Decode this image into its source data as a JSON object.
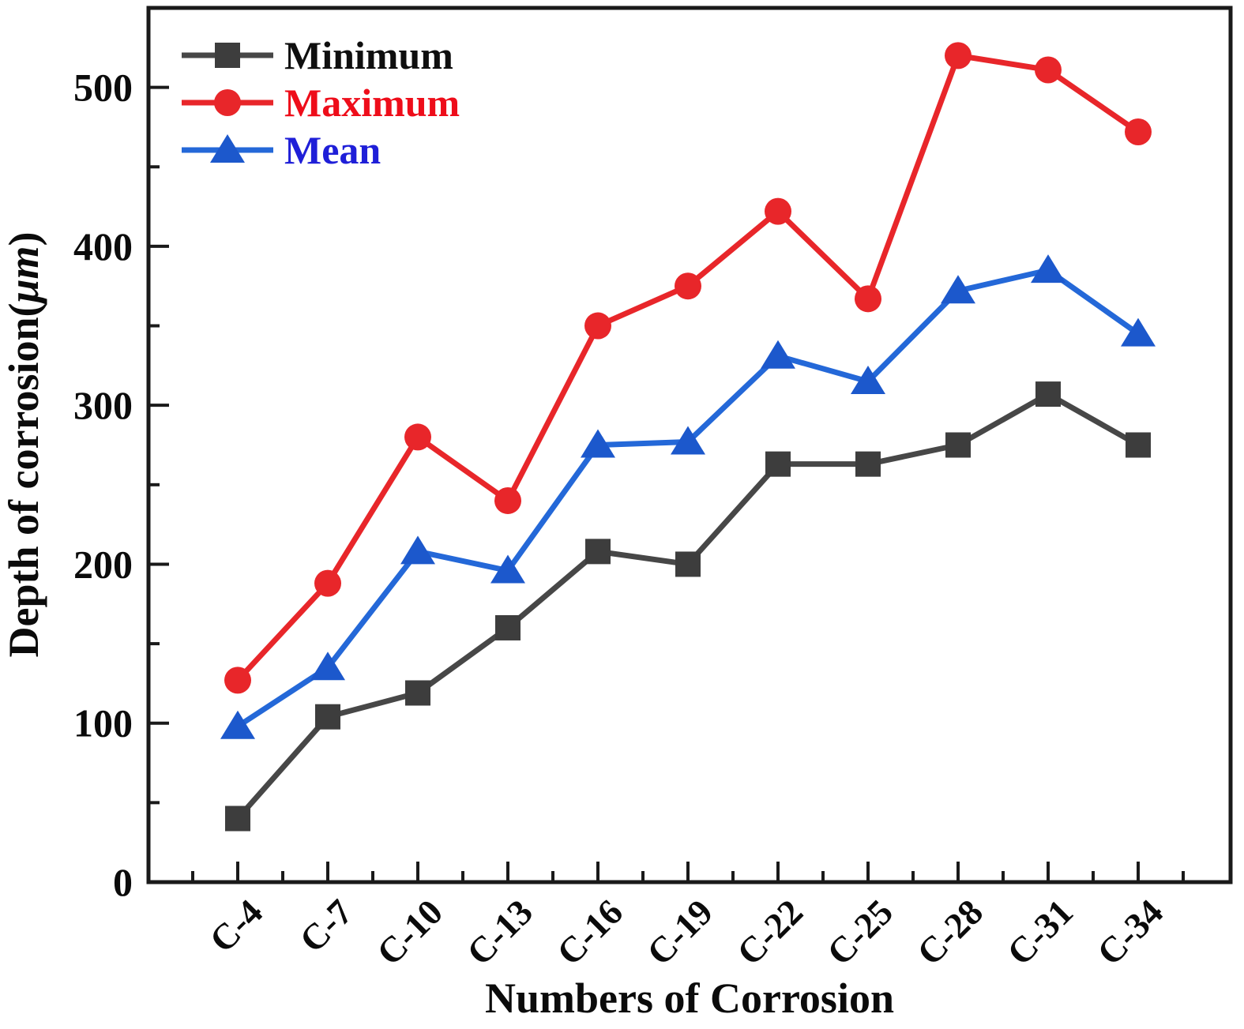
{
  "figure": {
    "background": "#ffffff",
    "axis_color": "#1a1a1a"
  },
  "chart_data": {
    "type": "line",
    "title": "",
    "xlabel": "Numbers of Corrosion",
    "ylabel": "Depth of corrosion(μm)",
    "ylabel_prefix": "Depth of corrosion(",
    "ylabel_unit": "μm",
    "ylabel_suffix": ")",
    "categories": [
      "C-4",
      "C-7",
      "C-10",
      "C-13",
      "C-16",
      "C-19",
      "C-22",
      "C-25",
      "C-28",
      "C-31",
      "C-34"
    ],
    "y_ticks": [
      0,
      100,
      200,
      300,
      400,
      500
    ],
    "y_minor_ticks": [
      50,
      150,
      250,
      350,
      450
    ],
    "ylim": [
      0,
      550
    ],
    "grid": false,
    "legend_position": "top-left-inside",
    "series": [
      {
        "name": "Minimum",
        "marker": "square",
        "color": "#3d3d3d",
        "line_color": "#474747",
        "label_color": "#0f0f0f",
        "values": [
          40,
          104,
          119,
          160,
          208,
          200,
          263,
          263,
          275,
          307,
          275
        ]
      },
      {
        "name": "Maximum",
        "marker": "circle",
        "color": "#e8262a",
        "line_color": "#e8262a",
        "label_color": "#ee0d1a",
        "values": [
          127,
          188,
          280,
          240,
          350,
          375,
          422,
          367,
          520,
          511,
          472
        ]
      },
      {
        "name": "Mean",
        "marker": "triangle",
        "color": "#1c58cc",
        "line_color": "#2468d8",
        "label_color": "#1f1fd8",
        "values": [
          98,
          135,
          208,
          196,
          275,
          277,
          331,
          315,
          372,
          385,
          345
        ]
      }
    ]
  }
}
